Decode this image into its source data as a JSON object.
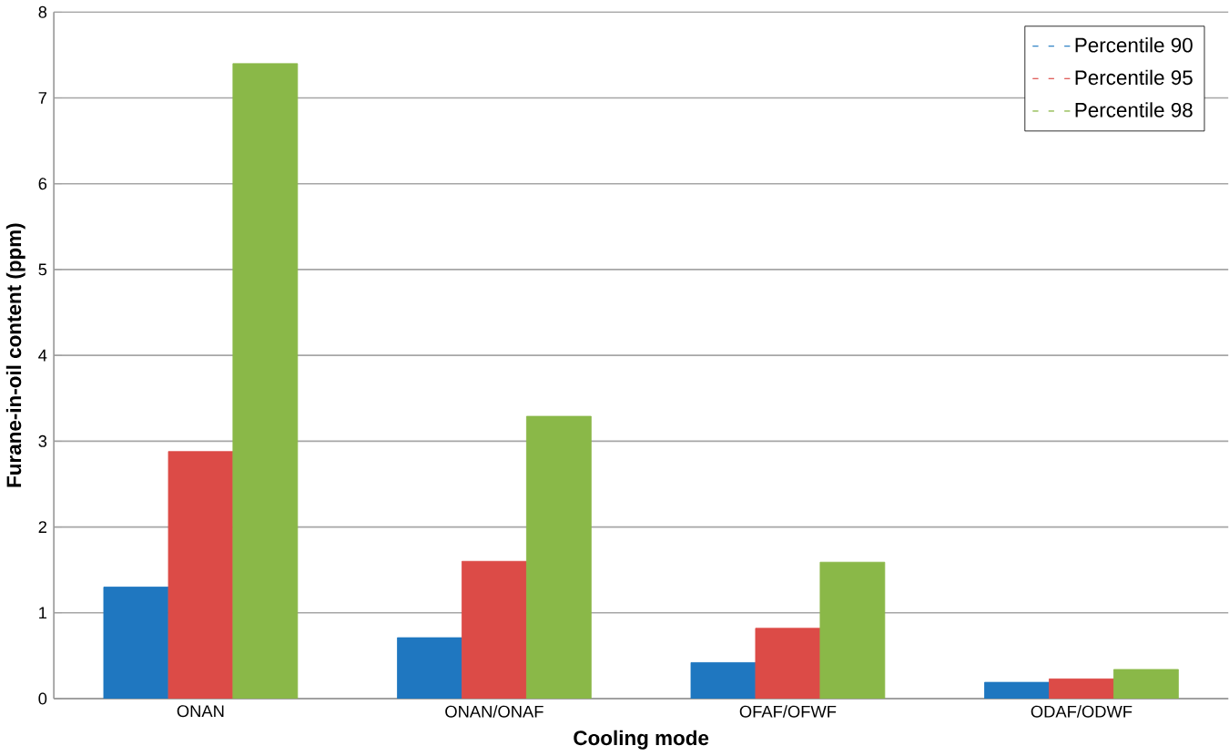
{
  "chart_data": {
    "type": "bar",
    "xlabel": "Cooling mode",
    "ylabel": "Furane-in-oil content (ppm)",
    "categories": [
      "ONAN",
      "ONAN/ONAF",
      "OFAF/OFWF",
      "ODAF/ODWF"
    ],
    "series": [
      {
        "name": "Percentile 90",
        "color": "#1f77c0",
        "values": [
          1.3,
          0.71,
          0.42,
          0.19
        ]
      },
      {
        "name": "Percentile 95",
        "color": "#dc4b47",
        "values": [
          2.88,
          1.6,
          0.82,
          0.23
        ]
      },
      {
        "name": "Percentile 98",
        "color": "#8ab848",
        "values": [
          7.4,
          3.29,
          1.59,
          0.34
        ]
      }
    ],
    "ylim": [
      0,
      8
    ],
    "yticks": [
      0,
      1,
      2,
      3,
      4,
      5,
      6,
      7,
      8
    ],
    "grid": "y",
    "legend": "top right"
  }
}
